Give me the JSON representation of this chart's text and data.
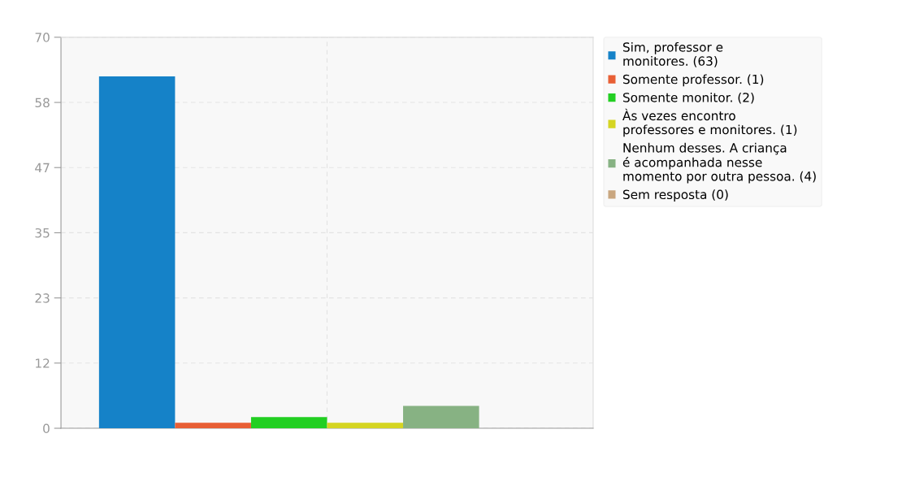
{
  "chart_data": {
    "type": "bar",
    "categories": [
      null
    ],
    "series": [
      {
        "name": "Sim, professor e\nmonitores. (63)",
        "color": "#1582c8",
        "values": [
          63
        ]
      },
      {
        "name": "Somente professor. (1)",
        "color": "#e85f35",
        "values": [
          1
        ]
      },
      {
        "name": "Somente monitor. (2)",
        "color": "#22cf22",
        "values": [
          2
        ]
      },
      {
        "name": "Às vezes encontro\nprofessores e monitores. (1)",
        "color": "#d5d522",
        "values": [
          1
        ]
      },
      {
        "name": "Nenhum desses. A criança\né acompanhada nesse\nmomento por outra pessoa. (4)",
        "color": "#87b283",
        "values": [
          4
        ]
      },
      {
        "name": "Sem resposta (0)",
        "color": "#c9a67f",
        "values": [
          0
        ]
      }
    ],
    "ylim": [
      0,
      70
    ],
    "yticks": [
      0,
      {
        "value": 11.67,
        "label": "12"
      },
      {
        "value": 23.33,
        "label": "23"
      },
      35,
      {
        "value": 46.67,
        "label": "47"
      },
      {
        "value": 58.33,
        "label": "58"
      },
      70
    ],
    "grid": true,
    "legend": "right"
  }
}
